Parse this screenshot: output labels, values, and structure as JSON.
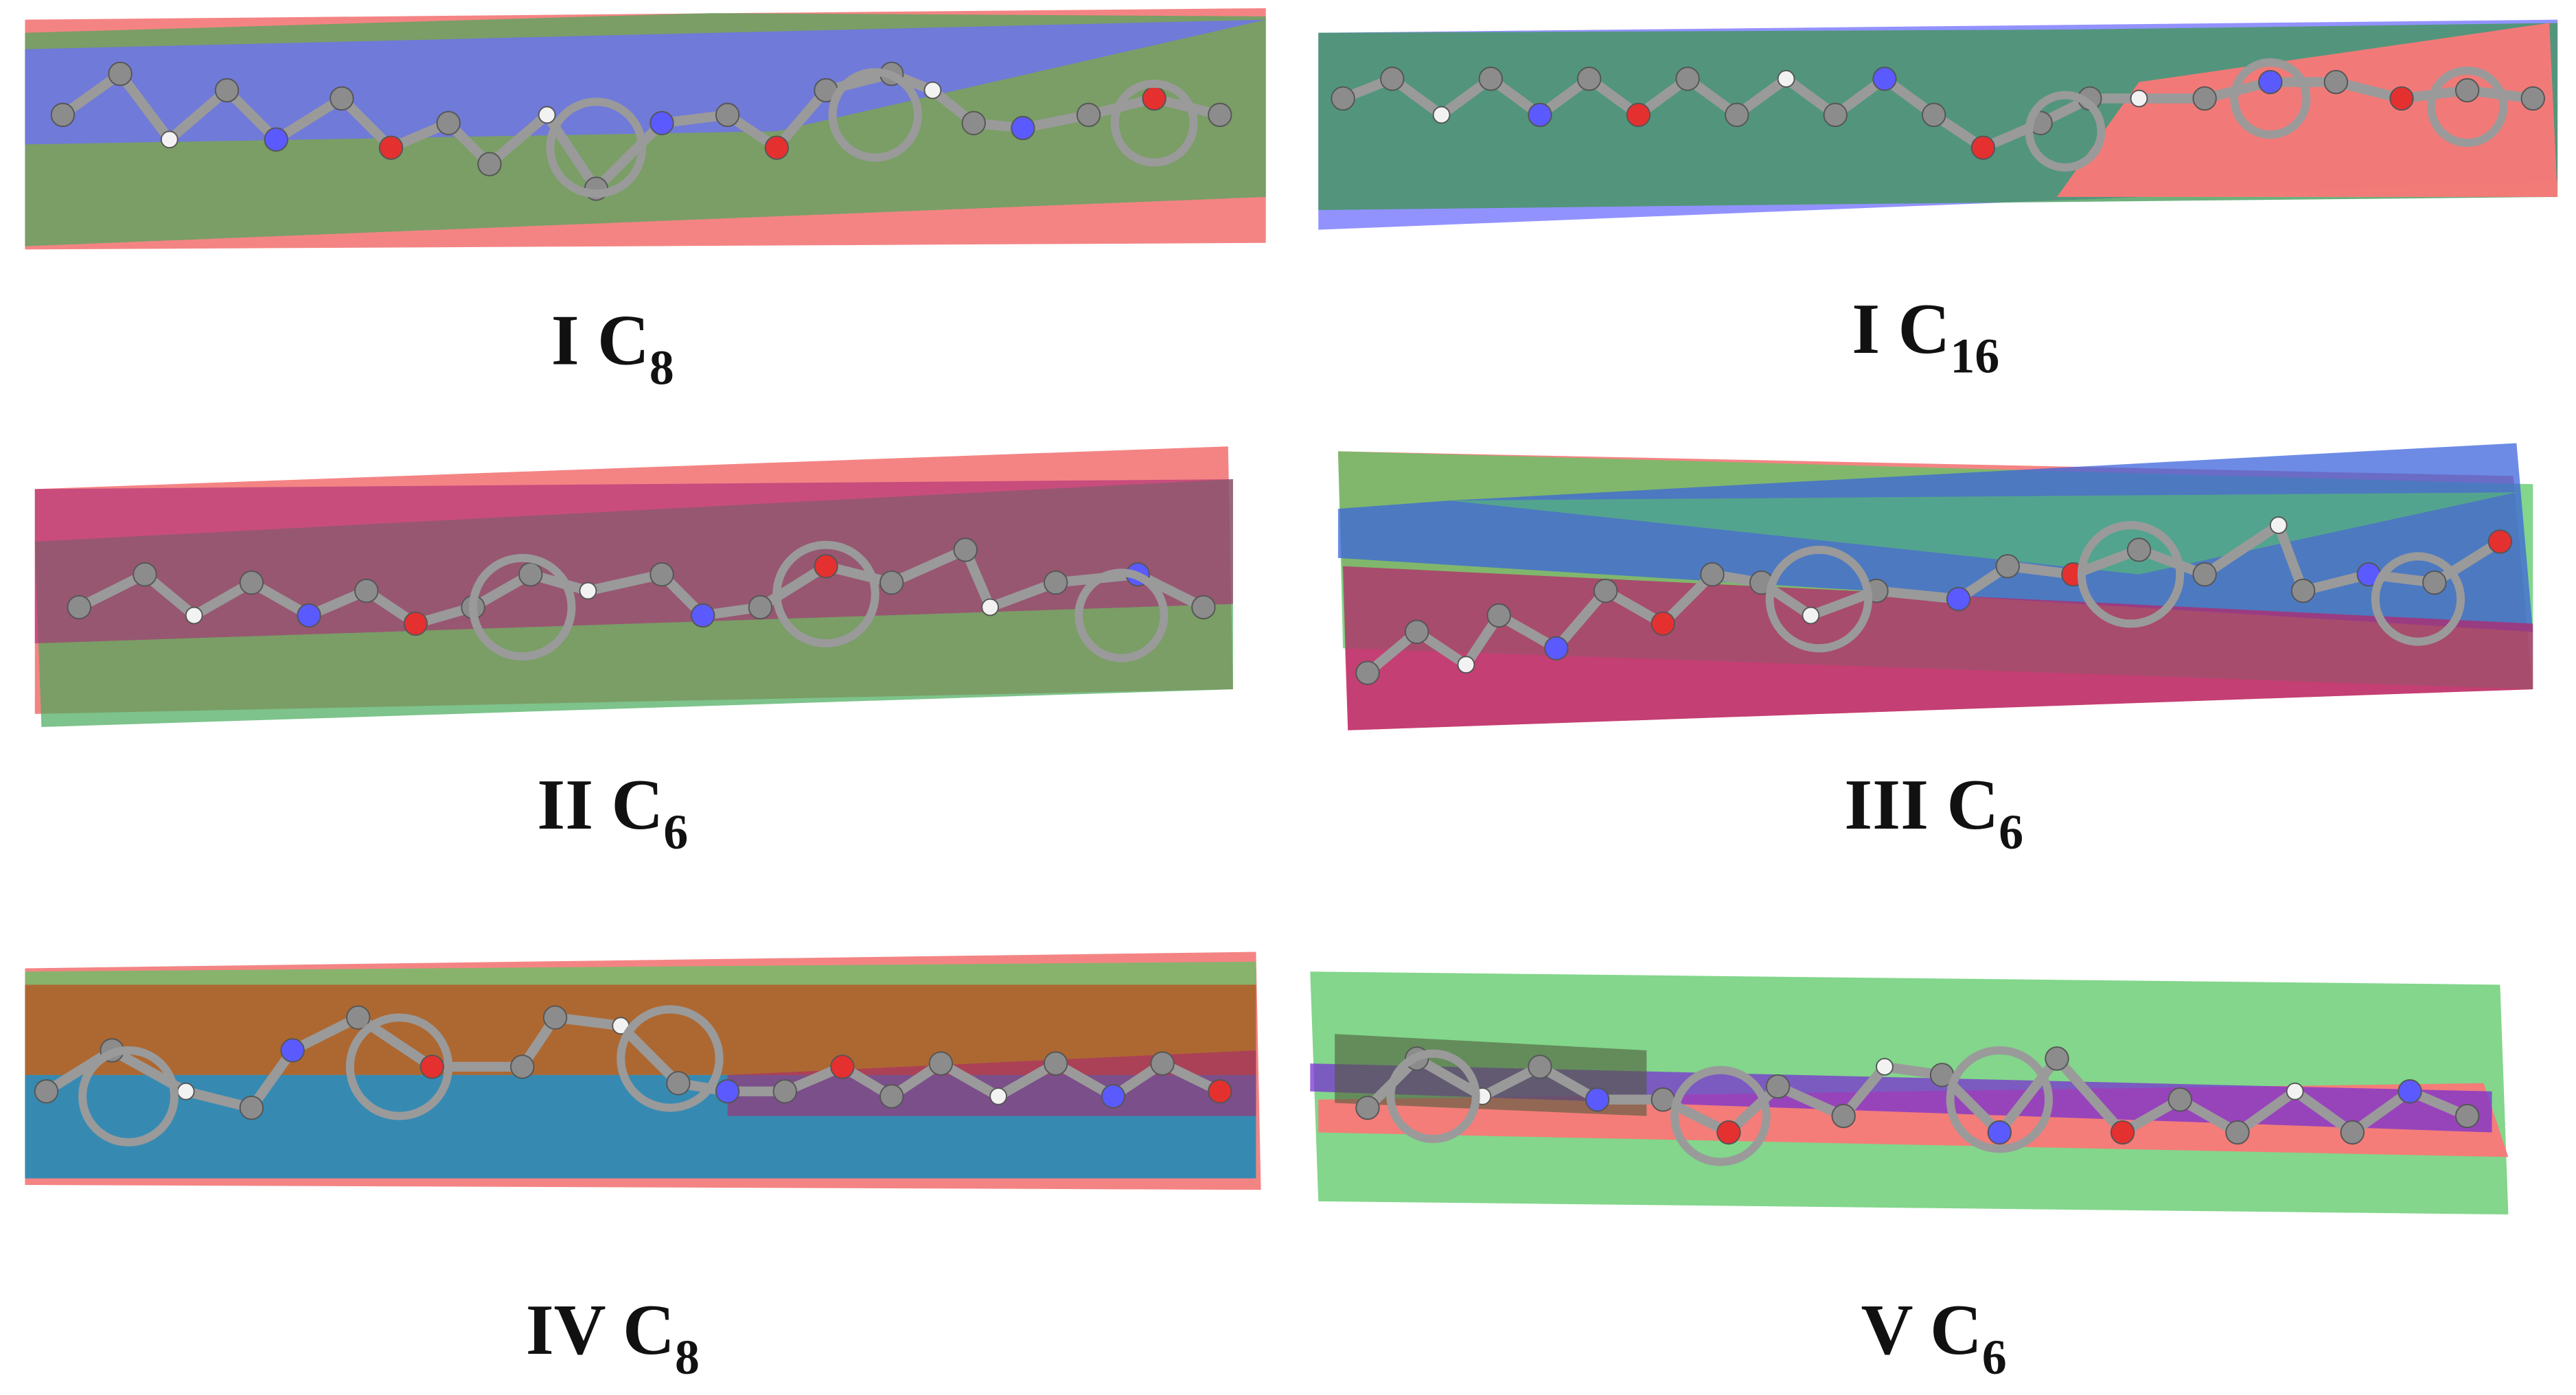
{
  "panels": [
    {
      "label": "I C",
      "subscript": "8"
    },
    {
      "label": "I C",
      "subscript": "16"
    },
    {
      "label": "II C",
      "subscript": "6"
    },
    {
      "label": "III C",
      "subscript": "6"
    },
    {
      "label": "IV C",
      "subscript": "8"
    },
    {
      "label": "V C",
      "subscript": "6"
    }
  ]
}
